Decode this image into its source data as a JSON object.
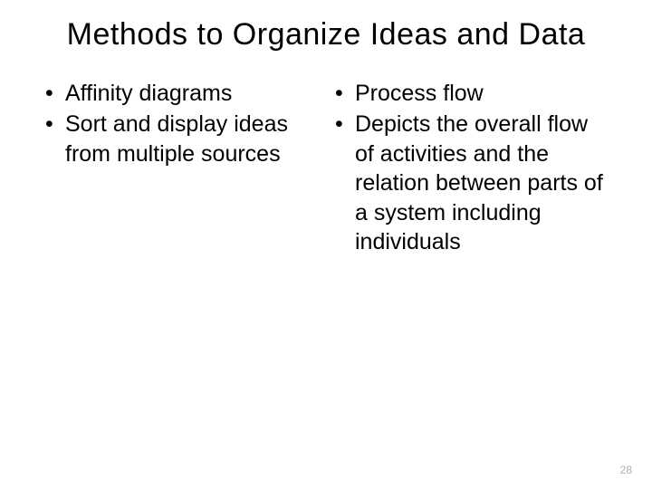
{
  "title": "Methods to Organize Ideas and Data",
  "columns": {
    "left": {
      "items": [
        {
          "text": "Affinity diagrams"
        },
        {
          "text": "Sort and display ideas from multiple sources"
        }
      ]
    },
    "right": {
      "items": [
        {
          "text": "Process flow"
        },
        {
          "text": "Depicts the overall flow of activities and the relation between parts of a system including individuals"
        }
      ]
    }
  },
  "page_number": "28",
  "styling": {
    "background_color": "#ffffff",
    "text_color": "#000000",
    "title_fontsize": 34,
    "body_fontsize": 25,
    "page_number_color": "#b0b0b0",
    "page_number_fontsize": 12,
    "bullet_char": "•"
  }
}
